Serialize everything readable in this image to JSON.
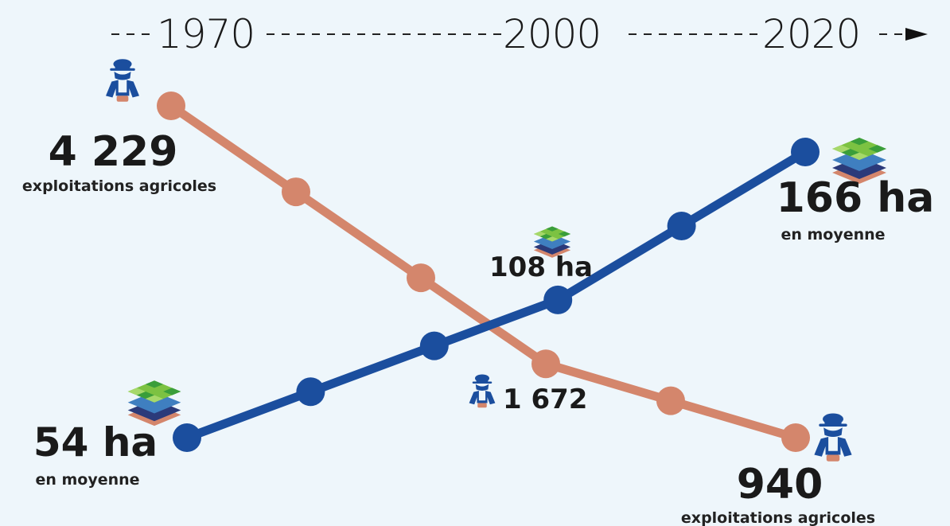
{
  "timeline": {
    "years": [
      "1970",
      "2000",
      "2020"
    ]
  },
  "labels": {
    "farms_start_value": "4 229",
    "farms_start_caption": "exploitations agricoles",
    "farms_mid_value": "1 672",
    "farms_end_value": "940",
    "farms_end_caption": "exploitations agricoles",
    "size_start_value": "54 ha",
    "size_start_caption": "en moyenne",
    "size_mid_value": "108 ha",
    "size_end_value": "166 ha",
    "size_end_caption": "en moyenne"
  },
  "colors": {
    "farms_series": "#d4866c",
    "size_series": "#1b4e9e",
    "background": "#eef6fb",
    "text": "#1a1a1a"
  },
  "icons": {
    "farmer": "farmer-icon",
    "land": "land-layers-icon"
  },
  "chart_data": {
    "type": "line",
    "series": [
      {
        "values": [
          4229,
          null,
          null,
          1672,
          null,
          940
        ]
      },
      {
        "values": [
          54,
          null,
          null,
          108,
          null,
          166
        ]
      }
    ]
  }
}
